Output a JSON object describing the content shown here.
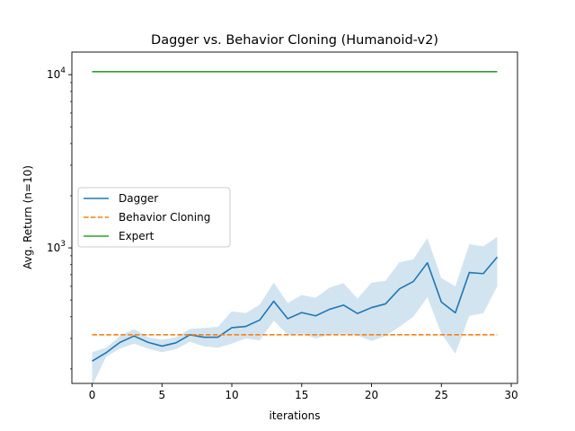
{
  "chart_data": {
    "type": "line",
    "title": "Dagger vs. Behavior Cloning (Humanoid-v2)",
    "xlabel": "iterations",
    "ylabel": "Avg. Return (n=10)",
    "xlim": [
      -1.45,
      30.45
    ],
    "ylim": [
      165,
      13500
    ],
    "yscale": "log",
    "grid": false,
    "legend_position": "center-left",
    "x_ticks": [
      0,
      5,
      10,
      15,
      20,
      25,
      30
    ],
    "x_tick_labels": [
      "0",
      "5",
      "10",
      "15",
      "20",
      "25",
      "30"
    ],
    "y_major_ticks": [
      {
        "value": 1000,
        "base": "10",
        "exp": "3"
      },
      {
        "value": 10000,
        "base": "10",
        "exp": "4"
      }
    ],
    "y_minor_ticks": [
      200,
      300,
      400,
      500,
      600,
      700,
      800,
      900,
      2000,
      3000,
      4000,
      5000,
      6000,
      7000,
      8000,
      9000
    ],
    "x": [
      0,
      1,
      2,
      3,
      4,
      5,
      6,
      7,
      8,
      9,
      10,
      11,
      12,
      13,
      14,
      15,
      16,
      17,
      18,
      19,
      20,
      21,
      22,
      23,
      24,
      25,
      26,
      27,
      28,
      29
    ],
    "series": [
      {
        "name": "Dagger",
        "color": "#1f77b4",
        "style": "solid",
        "values": [
          222,
          248,
          285,
          310,
          285,
          271,
          283,
          315,
          305,
          305,
          346,
          352,
          383,
          492,
          390,
          423,
          405,
          442,
          467,
          418,
          452,
          475,
          580,
          640,
          820,
          487,
          422,
          720,
          710,
          885
        ],
        "band_lower": [
          160,
          235,
          262,
          280,
          262,
          250,
          260,
          287,
          270,
          265,
          280,
          300,
          292,
          380,
          315,
          320,
          300,
          315,
          320,
          312,
          290,
          310,
          350,
          400,
          520,
          320,
          245,
          405,
          420,
          600
        ],
        "band_upper": [
          250,
          265,
          310,
          340,
          305,
          295,
          305,
          340,
          345,
          350,
          430,
          420,
          470,
          630,
          480,
          535,
          515,
          590,
          625,
          510,
          630,
          645,
          825,
          860,
          1140,
          670,
          600,
          1050,
          1020,
          1160
        ],
        "band_color": "#1f77b4",
        "band_opacity": 0.2
      },
      {
        "name": "Behavior Cloning",
        "color": "#ff7f0e",
        "style": "dashed",
        "values": [
          315,
          315,
          315,
          315,
          315,
          315,
          315,
          315,
          315,
          315,
          315,
          315,
          315,
          315,
          315,
          315,
          315,
          315,
          315,
          315,
          315,
          315,
          315,
          315,
          315,
          315,
          315,
          315,
          315,
          315
        ]
      },
      {
        "name": "Expert",
        "color": "#2ca02c",
        "style": "solid",
        "values": [
          10400,
          10400,
          10400,
          10400,
          10400,
          10400,
          10400,
          10400,
          10400,
          10400,
          10400,
          10400,
          10400,
          10400,
          10400,
          10400,
          10400,
          10400,
          10400,
          10400,
          10400,
          10400,
          10400,
          10400,
          10400,
          10400,
          10400,
          10400,
          10400,
          10400
        ]
      }
    ]
  }
}
